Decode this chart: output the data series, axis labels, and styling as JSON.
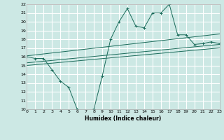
{
  "title": "",
  "xlabel": "Humidex (Indice chaleur)",
  "ylabel": "",
  "bg_color": "#cce8e4",
  "grid_color": "#ffffff",
  "line_color": "#1a6b5a",
  "xmin": 0,
  "xmax": 23,
  "ymin": 10,
  "ymax": 22,
  "main_x": [
    0,
    1,
    2,
    3,
    4,
    5,
    6,
    7,
    8,
    9,
    10,
    11,
    12,
    13,
    14,
    15,
    16,
    17,
    18,
    19,
    20,
    21,
    22,
    23
  ],
  "main_y": [
    16.0,
    15.8,
    15.8,
    14.5,
    13.2,
    12.5,
    10.0,
    9.8,
    10.0,
    13.8,
    18.0,
    20.0,
    21.5,
    19.5,
    19.3,
    21.0,
    21.0,
    22.0,
    18.5,
    18.5,
    17.4,
    17.5,
    17.7,
    17.5
  ],
  "upper_line_x": [
    0,
    23
  ],
  "upper_line_y": [
    16.1,
    18.6
  ],
  "lower_line_x": [
    0,
    23
  ],
  "lower_line_y": [
    15.3,
    17.4
  ],
  "middle_line_x": [
    0,
    23
  ],
  "middle_line_y": [
    15.0,
    17.0
  ]
}
